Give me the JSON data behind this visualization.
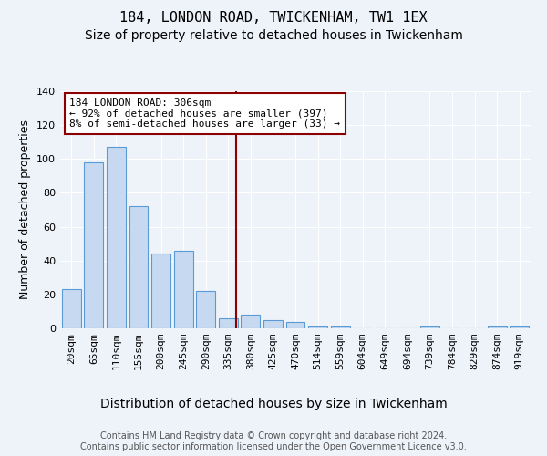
{
  "title": "184, LONDON ROAD, TWICKENHAM, TW1 1EX",
  "subtitle": "Size of property relative to detached houses in Twickenham",
  "xlabel": "Distribution of detached houses by size in Twickenham",
  "ylabel": "Number of detached properties",
  "categories": [
    "20sqm",
    "65sqm",
    "110sqm",
    "155sqm",
    "200sqm",
    "245sqm",
    "290sqm",
    "335sqm",
    "380sqm",
    "425sqm",
    "470sqm",
    "514sqm",
    "559sqm",
    "604sqm",
    "649sqm",
    "694sqm",
    "739sqm",
    "784sqm",
    "829sqm",
    "874sqm",
    "919sqm"
  ],
  "values": [
    23,
    98,
    107,
    72,
    44,
    46,
    22,
    6,
    8,
    5,
    4,
    1,
    1,
    0,
    0,
    0,
    1,
    0,
    0,
    1,
    1
  ],
  "bar_color": "#c6d9f0",
  "bar_edge_color": "#5b9bd5",
  "bar_width": 0.85,
  "ylim": [
    0,
    140
  ],
  "yticks": [
    0,
    20,
    40,
    60,
    80,
    100,
    120,
    140
  ],
  "vline_x": 7.35,
  "vline_color": "#8b0000",
  "annotation_line1": "184 LONDON ROAD: 306sqm",
  "annotation_line2": "← 92% of detached houses are smaller (397)",
  "annotation_line3": "8% of semi-detached houses are larger (33) →",
  "annotation_box_color": "#ffffff",
  "annotation_box_edge": "#8b0000",
  "footnote": "Contains HM Land Registry data © Crown copyright and database right 2024.\nContains public sector information licensed under the Open Government Licence v3.0.",
  "background_color": "#eef2f9",
  "plot_bg_color": "#eef2f9",
  "grid_color": "#ffffff",
  "title_fontsize": 11,
  "subtitle_fontsize": 10,
  "xlabel_fontsize": 10,
  "ylabel_fontsize": 9,
  "tick_fontsize": 8,
  "annot_fontsize": 8,
  "footnote_fontsize": 7
}
